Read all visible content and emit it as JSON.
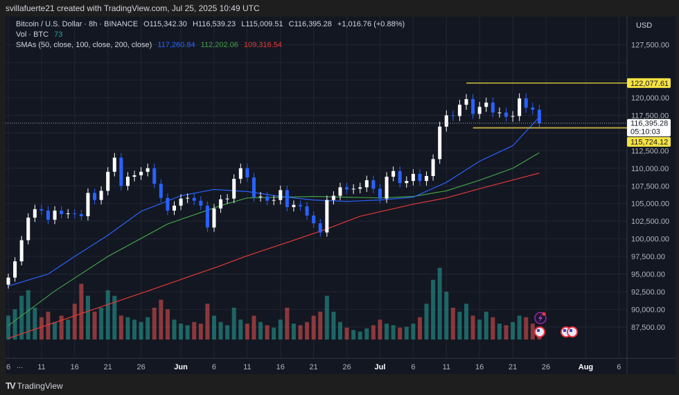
{
  "credit": "svillafuerte21 created with TradingView.com, Jul 25, 2025 10:49 UTC",
  "legend": {
    "symbol": "Bitcoin / U.S. Dollar · 8h · BINANCE",
    "open": "O115,342.30",
    "high": "H116,539.23",
    "low": "L115,009.51",
    "close": "C116,395.28",
    "change": "+1,016.76 (+0.88%)",
    "vol_label": "Vol · BTC",
    "vol_value": "73",
    "sma_label": "SMAs (50, close, 100, close, 200, close)",
    "sma50": "117,260.84",
    "sma100": "112,202.06",
    "sma200": "109,316.54"
  },
  "currency": "USD",
  "more": "...",
  "footer": "TradingView",
  "colors": {
    "up": "#ffffff",
    "down": "#2962ff",
    "vol_up": "#26a69a",
    "vol_down": "#ef5350",
    "sma50": "#2962ff",
    "sma100": "#43a047",
    "sma200": "#e53935",
    "level": "#f5e342",
    "bg": "#131722"
  },
  "icons": [
    "lightning-event-icon",
    "us-flag-event-icon",
    "us-flag-event-icon",
    "us-flag-event-icon"
  ],
  "chart_data": {
    "type": "candlestick",
    "interval": "8h (shown aggregated daily)",
    "start_date": "2025-05-06",
    "closes": [
      94500,
      96800,
      99800,
      103000,
      104200,
      104000,
      102700,
      104000,
      103500,
      103600,
      103500,
      103200,
      106500,
      105500,
      106800,
      109500,
      111500,
      107500,
      108800,
      109000,
      109500,
      110000,
      107800,
      105800,
      104000,
      104700,
      105700,
      105800,
      105400,
      104700,
      101600,
      104300,
      105600,
      105700,
      108500,
      110000,
      108700,
      105900,
      106000,
      105400,
      105500,
      106900,
      104500,
      104800,
      104600,
      103300,
      102200,
      100900,
      105500,
      106100,
      107300,
      107000,
      107100,
      107300,
      108300,
      107100,
      105700,
      108800,
      109600,
      107900,
      108200,
      109200,
      108200,
      108900,
      111300,
      115900,
      117500,
      117400,
      119000,
      119800,
      117700,
      118700,
      119300,
      117900,
      117900,
      117300,
      117400,
      119900,
      118600,
      118300,
      116395.28
    ],
    "volume_relative": [
      30,
      38,
      55,
      62,
      40,
      28,
      35,
      22,
      30,
      25,
      45,
      70,
      55,
      35,
      40,
      62,
      55,
      30,
      28,
      25,
      22,
      28,
      40,
      50,
      38,
      25,
      20,
      18,
      22,
      20,
      45,
      30,
      22,
      18,
      40,
      25,
      20,
      30,
      22,
      18,
      15,
      25,
      40,
      20,
      18,
      22,
      30,
      35,
      55,
      35,
      22,
      15,
      12,
      10,
      14,
      18,
      25,
      20,
      18,
      15,
      16,
      20,
      28,
      45,
      75,
      90,
      60,
      40,
      35,
      45,
      30,
      25,
      35,
      28,
      20,
      18,
      22,
      30,
      28,
      20,
      8
    ],
    "sma50": [
      [
        0,
        93300
      ],
      [
        6,
        95000
      ],
      [
        10,
        97500
      ],
      [
        15,
        100500
      ],
      [
        20,
        103900
      ],
      [
        26,
        106100
      ],
      [
        31,
        107000
      ],
      [
        36,
        106700
      ],
      [
        41,
        106000
      ],
      [
        46,
        105500
      ],
      [
        51,
        105300
      ],
      [
        56,
        105500
      ],
      [
        61,
        105900
      ],
      [
        66,
        108000
      ],
      [
        71,
        111000
      ],
      [
        76,
        113200
      ],
      [
        80,
        117260.84
      ]
    ],
    "sma100": [
      [
        0,
        87700
      ],
      [
        7,
        92600
      ],
      [
        15,
        97500
      ],
      [
        24,
        102100
      ],
      [
        32,
        104700
      ],
      [
        36,
        105800
      ],
      [
        46,
        106000
      ],
      [
        56,
        105800
      ],
      [
        61,
        106000
      ],
      [
        66,
        106800
      ],
      [
        71,
        108300
      ],
      [
        76,
        110000
      ],
      [
        80,
        112202.06
      ]
    ],
    "sma200": [
      [
        0,
        85900
      ],
      [
        21,
        92600
      ],
      [
        32,
        96200
      ],
      [
        36,
        97600
      ],
      [
        43,
        99800
      ],
      [
        48,
        101400
      ],
      [
        53,
        103200
      ],
      [
        61,
        104900
      ],
      [
        66,
        105800
      ],
      [
        71,
        107100
      ],
      [
        80,
        109316.54
      ]
    ],
    "levels": [
      {
        "price": 122077.61,
        "label": "122,077.61",
        "from_day": 69
      },
      {
        "price": 115724.12,
        "label": "115,724.12",
        "from_day": 70
      }
    ],
    "last_price": {
      "label": "116,395.28",
      "countdown": "05:10:03",
      "price": 116395.28
    },
    "y_ticks": [
      "127,500.00",
      "120,000.00",
      "117,500.00",
      "112,500.00",
      "110,000.00",
      "107,500.00",
      "105,000.00",
      "102,500.00",
      "100,000.00",
      "97,500.00",
      "95,000.00",
      "92,500.00",
      "90,000.00",
      "87,500.00"
    ],
    "y_tick_values": [
      127500,
      120000,
      117500,
      112500,
      110000,
      107500,
      105000,
      102500,
      100000,
      97500,
      95000,
      92500,
      90000,
      87500
    ],
    "x_ticks": [
      "6",
      "11",
      "16",
      "21",
      "26",
      "Jun",
      "6",
      "11",
      "16",
      "21",
      "26",
      "Jul",
      "6",
      "11",
      "16",
      "21",
      "26",
      "Aug",
      "6"
    ],
    "x_tick_days": [
      0,
      5,
      10,
      15,
      20,
      26,
      31,
      36,
      41,
      46,
      51,
      56,
      61,
      66,
      71,
      76,
      81,
      87,
      92
    ]
  }
}
